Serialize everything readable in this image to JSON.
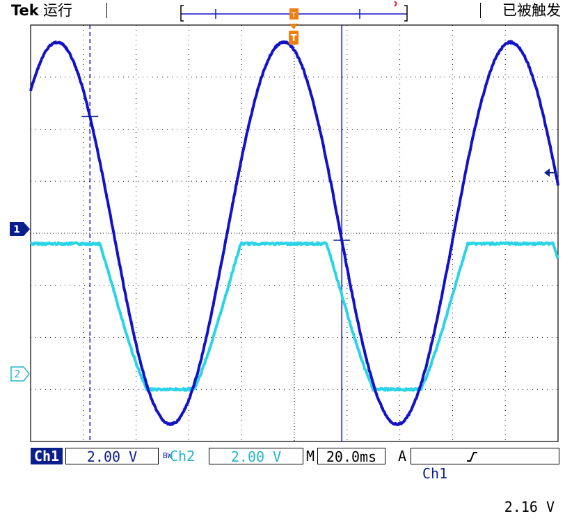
{
  "header": {
    "brand": "Tek",
    "run_status": "运行",
    "trigger_state": "已被触发"
  },
  "markers": {
    "ch1": "1",
    "ch2": "2",
    "trigger_position": "T"
  },
  "statusbar": {
    "ch1_label": "Ch1",
    "ch1_scale": "2.00 V",
    "bw_limit": "BW",
    "ch2_label": "Ch2",
    "ch2_scale": "2.00 V",
    "timebase_prefix": "M",
    "timebase": "20.0ms",
    "trigger_mode": "A",
    "trigger_source": "Ch1",
    "trigger_slope": "rising-edge",
    "trigger_level": "2.16 V"
  },
  "colors": {
    "ch1": "#1212c8",
    "ch2": "#2ad4e8",
    "trigger": "#f07d0f",
    "grid": "#000000"
  },
  "chart_data": {
    "type": "line",
    "x_unit": "ms",
    "y_unit": "V",
    "x_range_ms": [
      0,
      200
    ],
    "grid": true,
    "series": [
      {
        "name": "Ch1",
        "wave": "sine",
        "period_ms": 86,
        "peak_time_ms": 10,
        "amplitude_div": 3.67,
        "offset_div": 0
      },
      {
        "name": "Ch2",
        "wave": "clipped-sine",
        "high_div": -0.2,
        "low_div": -3.0
      }
    ],
    "cursors_ms": [
      22.5,
      118
    ]
  }
}
